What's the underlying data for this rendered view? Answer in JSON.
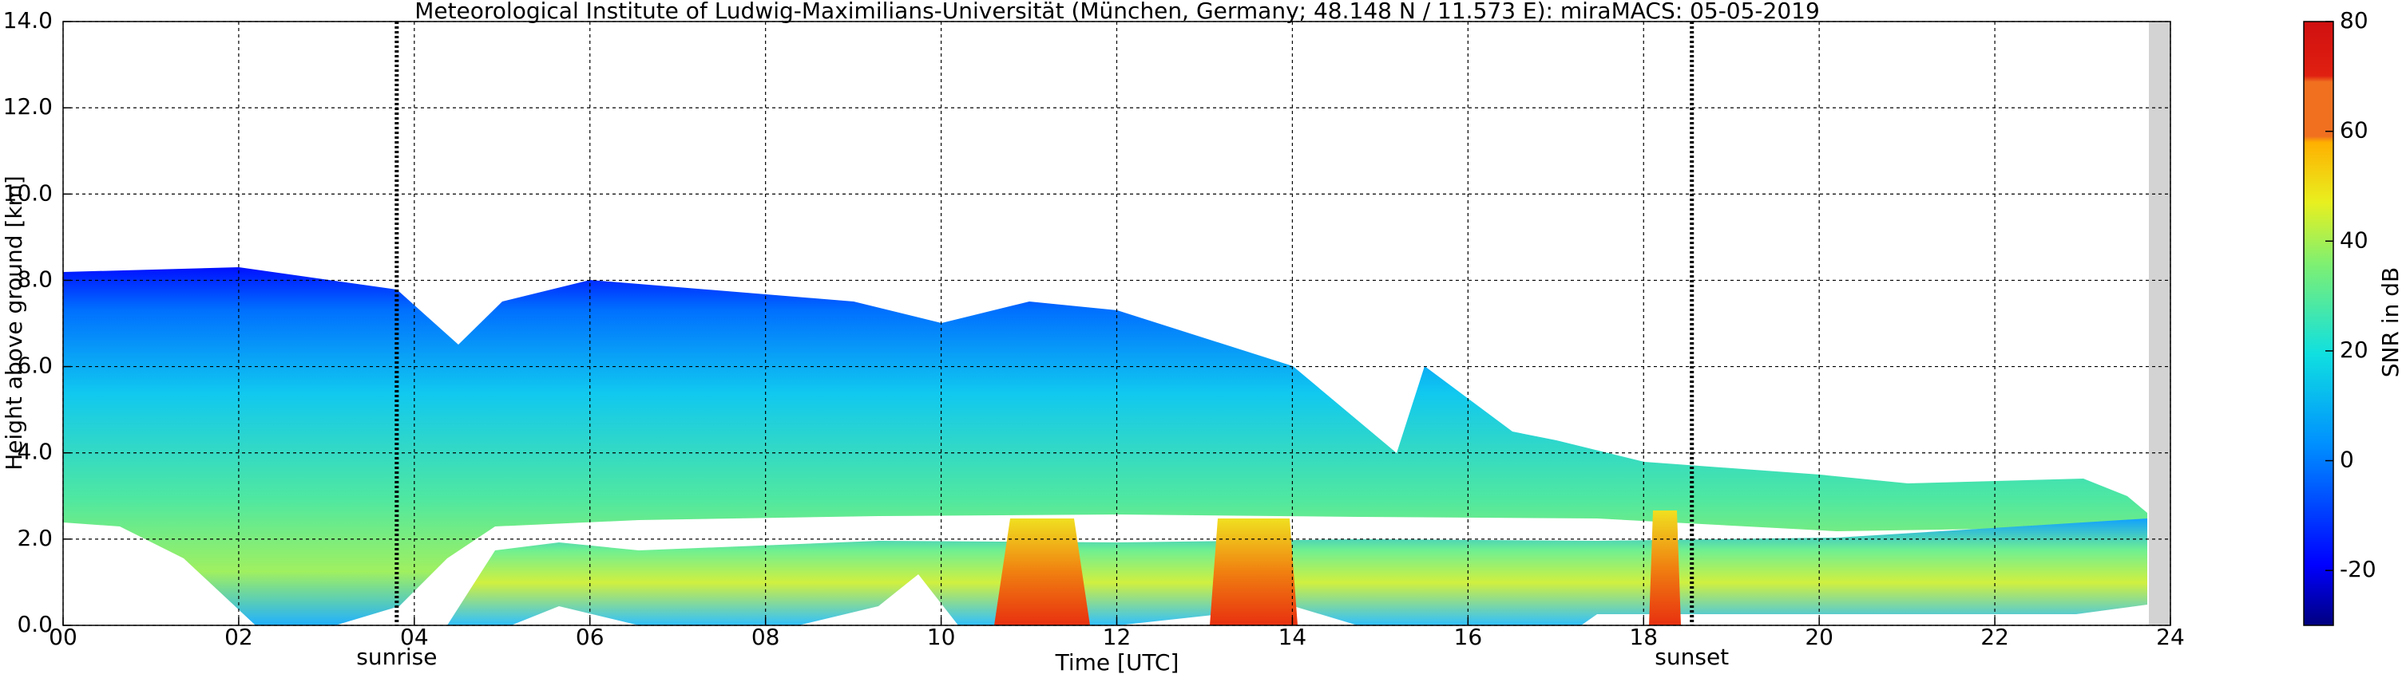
{
  "chart_data": {
    "type": "radar-timeheight",
    "title": "Meteorological Institute of Ludwig-Maximilians-Universität (München, Germany; 48.148 N / 11.573 E):    miraMACS: 05-05-2019",
    "xlabel": "Time [UTC]",
    "ylabel": "Height above ground [km]",
    "xlim": [
      0,
      24
    ],
    "ylim": [
      0,
      14
    ],
    "xticks": [
      {
        "value": 0,
        "label": "00"
      },
      {
        "value": 2,
        "label": "02"
      },
      {
        "value": 4,
        "label": "04"
      },
      {
        "value": 6,
        "label": "06"
      },
      {
        "value": 8,
        "label": "08"
      },
      {
        "value": 10,
        "label": "10"
      },
      {
        "value": 12,
        "label": "12"
      },
      {
        "value": 14,
        "label": "14"
      },
      {
        "value": 16,
        "label": "16"
      },
      {
        "value": 18,
        "label": "18"
      },
      {
        "value": 20,
        "label": "20"
      },
      {
        "value": 22,
        "label": "22"
      },
      {
        "value": 24,
        "label": "24"
      }
    ],
    "yticks": [
      {
        "value": 0,
        "label": "0.0"
      },
      {
        "value": 2,
        "label": "2.0"
      },
      {
        "value": 4,
        "label": "4.0"
      },
      {
        "value": 6,
        "label": "6.0"
      },
      {
        "value": 8,
        "label": "8.0"
      },
      {
        "value": 10,
        "label": "10.0"
      },
      {
        "value": 12,
        "label": "12.0"
      },
      {
        "value": 14,
        "label": "14.0"
      }
    ],
    "grid": true,
    "annotations": [
      {
        "text": "sunrise",
        "x": 3.8
      },
      {
        "text": "sunset",
        "x": 18.55
      }
    ],
    "colorbar": {
      "label": "SNR in dB",
      "lim": [
        -30,
        80
      ],
      "ticks": [
        -20,
        0,
        20,
        40,
        60,
        80
      ]
    }
  }
}
